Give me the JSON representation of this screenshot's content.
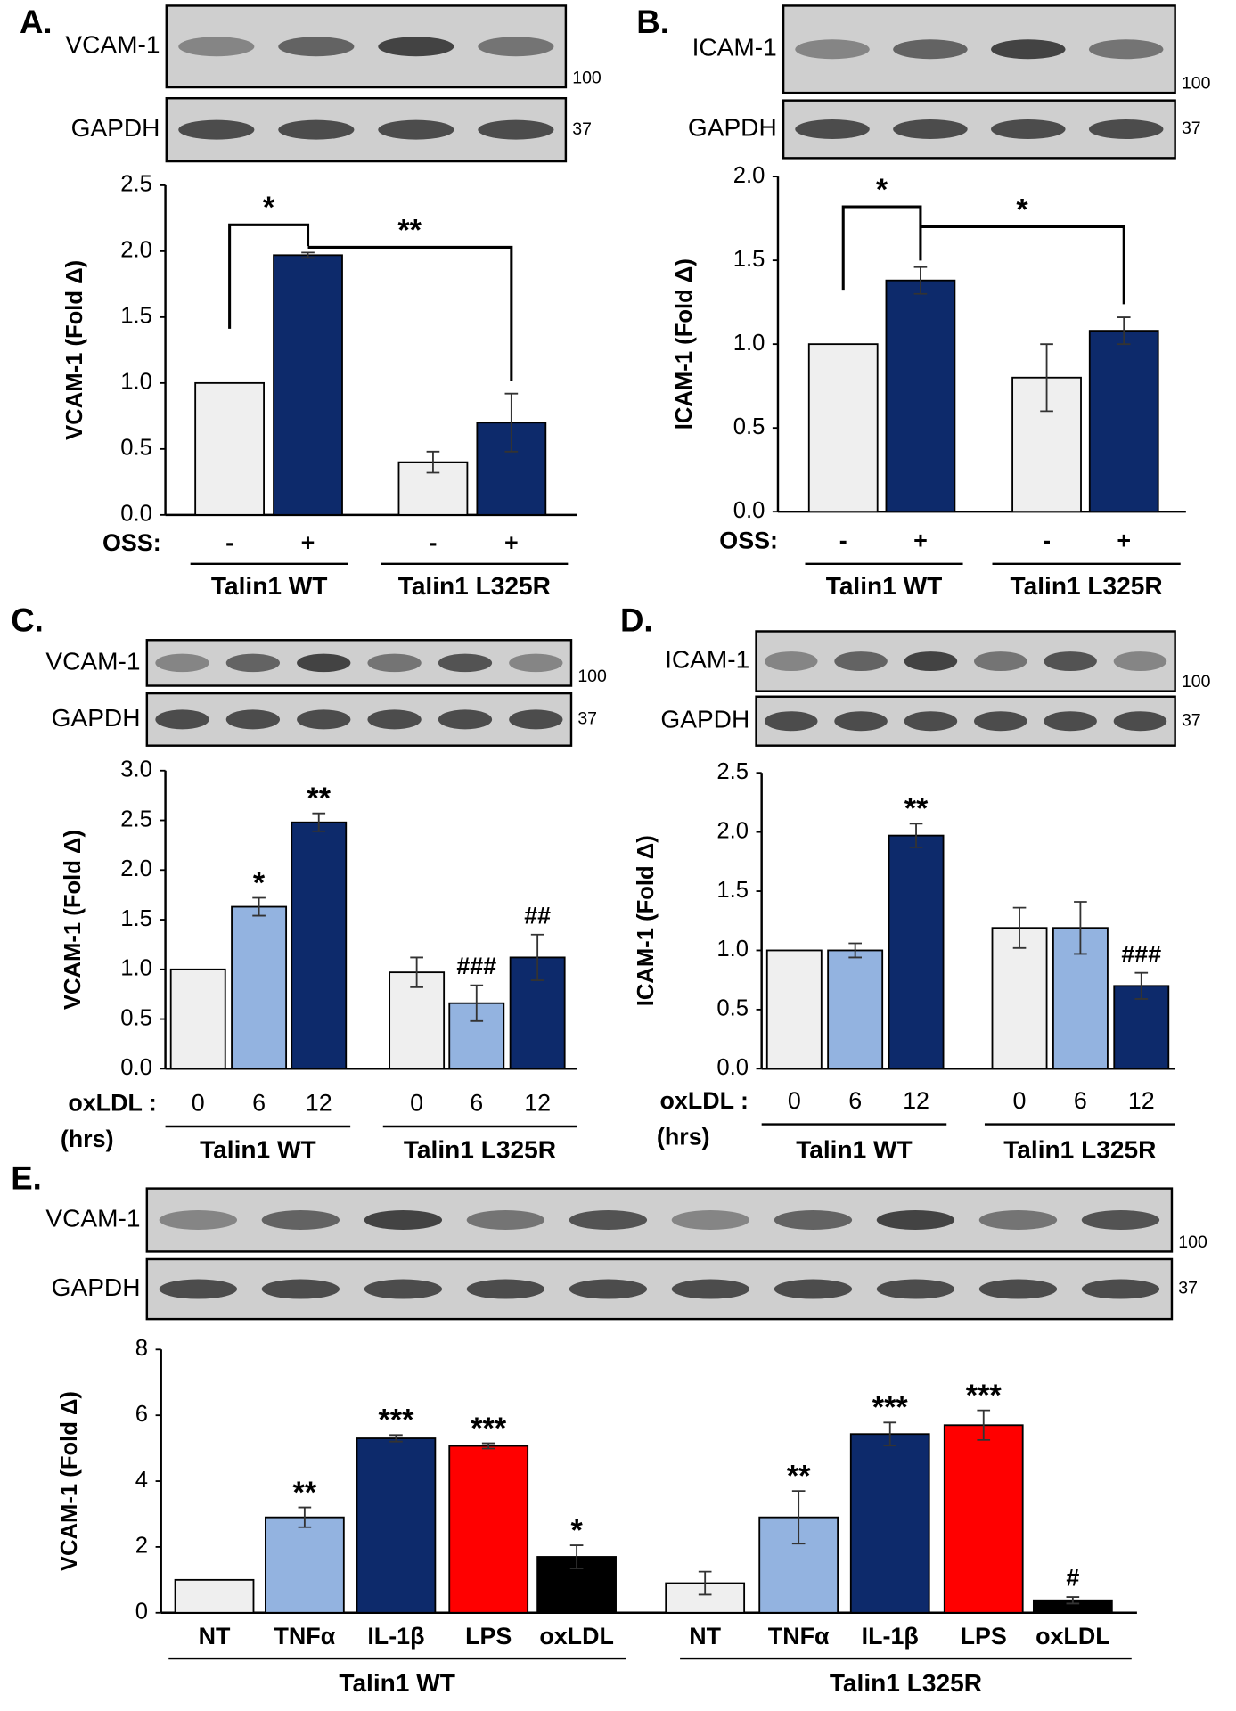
{
  "chart_data": [
    {
      "type": "bar",
      "panel": "A.",
      "y_label": "VCAM-1 (Fold Δ)",
      "x_label": "OSS:",
      "blot": [
        {
          "label": "VCAM-1",
          "marker": "100"
        },
        {
          "label": "GAPDH",
          "marker": "37"
        }
      ],
      "ylim": [
        0,
        2.5
      ],
      "yticks": [
        {
          "value": 0,
          "label": "0.0"
        },
        0.5,
        {
          "value": 1,
          "label": "1.0"
        },
        1.5,
        {
          "value": 2,
          "label": "2.0"
        },
        2.5
      ],
      "significance": [
        "*",
        "**"
      ],
      "groups": [
        {
          "name": "Talin1 WT",
          "bars": [
            {
              "category": "-",
              "value": 1.0,
              "error": 0,
              "color": "#efefef"
            },
            {
              "category": "+",
              "value": 1.97,
              "error": 0.02,
              "color": "#0d2a6b"
            }
          ]
        },
        {
          "name": "Talin1 L325R",
          "bars": [
            {
              "category": "-",
              "value": 0.4,
              "error": 0.08,
              "color": "#efefef"
            },
            {
              "category": "+",
              "value": 0.7,
              "error": 0.22,
              "color": "#0d2a6b"
            }
          ]
        }
      ]
    },
    {
      "type": "bar",
      "panel": "B.",
      "y_label": "ICAM-1 (Fold Δ)",
      "x_label": "OSS:",
      "blot": [
        {
          "label": "ICAM-1",
          "marker": "100"
        },
        {
          "label": "GAPDH",
          "marker": "37"
        }
      ],
      "ylim": [
        0,
        2
      ],
      "yticks": [
        {
          "value": 0,
          "label": "0.0"
        },
        0.5,
        {
          "value": 1,
          "label": "1.0"
        },
        1.5,
        {
          "value": 2,
          "label": "2.0"
        }
      ],
      "significance": [
        "*",
        "*"
      ],
      "groups": [
        {
          "name": "Talin1 WT",
          "bars": [
            {
              "category": "-",
              "value": 1.0,
              "error": 0,
              "color": "#efefef"
            },
            {
              "category": "+",
              "value": 1.38,
              "error": 0.08,
              "color": "#0d2a6b"
            }
          ]
        },
        {
          "name": "Talin1 L325R",
          "bars": [
            {
              "category": "-",
              "value": 0.8,
              "error": 0.2,
              "color": "#efefef"
            },
            {
              "category": "+",
              "value": 1.08,
              "error": 0.08,
              "color": "#0d2a6b"
            }
          ]
        }
      ]
    },
    {
      "type": "bar",
      "panel": "C.",
      "y_label": "VCAM-1 (Fold Δ)",
      "x_label": "oxLDL :",
      "x_unit": "(hrs)",
      "blot": [
        {
          "label": "VCAM-1",
          "marker": "100"
        },
        {
          "label": "GAPDH",
          "marker": "37"
        }
      ],
      "ylim": [
        0,
        3
      ],
      "yticks": [
        {
          "value": 0,
          "label": "0.0"
        },
        0.5,
        {
          "value": 1,
          "label": "1.0"
        },
        1.5,
        {
          "value": 2,
          "label": "2.0"
        },
        2.5,
        {
          "value": 3,
          "label": "3.0"
        }
      ],
      "groups": [
        {
          "name": "Talin1 WT",
          "bars": [
            {
              "category": "0",
              "value": 1.0,
              "error": 0,
              "color": "#efefef"
            },
            {
              "category": "6",
              "value": 1.63,
              "error": 0.09,
              "color": "#93b3e0",
              "label": "*"
            },
            {
              "category": "12",
              "value": 2.48,
              "error": 0.09,
              "color": "#0d2a6b",
              "label": "**"
            }
          ]
        },
        {
          "name": "Talin1 L325R",
          "bars": [
            {
              "category": "0",
              "value": 0.97,
              "error": 0.15,
              "color": "#efefef"
            },
            {
              "category": "6",
              "value": 0.66,
              "error": 0.18,
              "color": "#93b3e0",
              "label": "###"
            },
            {
              "category": "12",
              "value": 1.12,
              "error": 0.23,
              "color": "#0d2a6b",
              "label": "##"
            }
          ]
        }
      ]
    },
    {
      "type": "bar",
      "panel": "D.",
      "y_label": "ICAM-1 (Fold Δ)",
      "x_label": "oxLDL :",
      "x_unit": "(hrs)",
      "blot": [
        {
          "label": "ICAM-1",
          "marker": "100"
        },
        {
          "label": "GAPDH",
          "marker": "37"
        }
      ],
      "ylim": [
        0,
        2.5
      ],
      "yticks": [
        {
          "value": 0,
          "label": "0.0"
        },
        0.5,
        {
          "value": 1,
          "label": "1.0"
        },
        1.5,
        {
          "value": 2,
          "label": "2.0"
        },
        2.5
      ],
      "groups": [
        {
          "name": "Talin1 WT",
          "bars": [
            {
              "category": "0",
              "value": 1.0,
              "error": 0,
              "color": "#efefef"
            },
            {
              "category": "6",
              "value": 1.0,
              "error": 0.06,
              "color": "#93b3e0"
            },
            {
              "category": "12",
              "value": 1.97,
              "error": 0.1,
              "color": "#0d2a6b",
              "label": "**"
            }
          ]
        },
        {
          "name": "Talin1 L325R",
          "bars": [
            {
              "category": "0",
              "value": 1.19,
              "error": 0.17,
              "color": "#efefef"
            },
            {
              "category": "6",
              "value": 1.19,
              "error": 0.22,
              "color": "#93b3e0"
            },
            {
              "category": "12",
              "value": 0.7,
              "error": 0.11,
              "color": "#0d2a6b",
              "label": "###"
            }
          ]
        }
      ]
    },
    {
      "type": "bar",
      "panel": "E.",
      "y_label": "VCAM-1 (Fold Δ)",
      "blot": [
        {
          "label": "VCAM-1",
          "marker": "100"
        },
        {
          "label": "GAPDH",
          "marker": "37"
        }
      ],
      "ylim": [
        0,
        8
      ],
      "yticks": [
        0,
        2,
        4,
        6,
        8
      ],
      "groups": [
        {
          "name": "Talin1 WT",
          "bars": [
            {
              "category": "NT",
              "value": 1.0,
              "error": 0,
              "color": "#efefef"
            },
            {
              "category": "TNFα",
              "value": 2.9,
              "error": 0.3,
              "color": "#93b3e0",
              "label": "**"
            },
            {
              "category": "IL-1β",
              "value": 5.3,
              "error": 0.1,
              "color": "#0d2a6b",
              "label": "***"
            },
            {
              "category": "LPS",
              "value": 5.07,
              "error": 0.08,
              "color": "#ff0000",
              "label": "***"
            },
            {
              "category": "oxLDL",
              "value": 1.7,
              "error": 0.35,
              "color": "#000000",
              "label": "*"
            }
          ]
        },
        {
          "name": "Talin1 L325R",
          "bars": [
            {
              "category": "NT",
              "value": 0.9,
              "error": 0.35,
              "color": "#efefef"
            },
            {
              "category": "TNFα",
              "value": 2.9,
              "error": 0.8,
              "color": "#93b3e0",
              "label": "**"
            },
            {
              "category": "IL-1β",
              "value": 5.43,
              "error": 0.35,
              "color": "#0d2a6b",
              "label": "***"
            },
            {
              "category": "LPS",
              "value": 5.7,
              "error": 0.45,
              "color": "#ff0000",
              "label": "***"
            },
            {
              "category": "oxLDL",
              "value": 0.38,
              "error": 0.1,
              "color": "#000000",
              "label": "#"
            }
          ]
        }
      ]
    }
  ]
}
